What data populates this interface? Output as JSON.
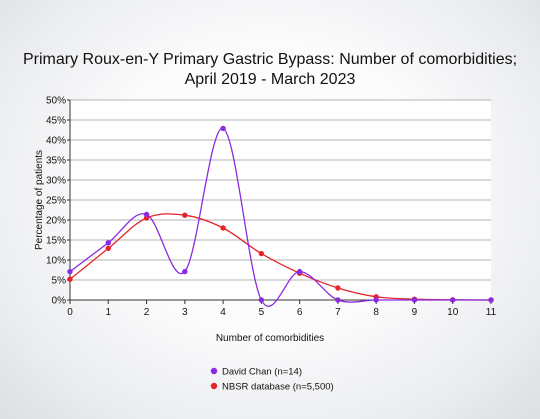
{
  "chart_data": {
    "type": "line",
    "title": "Primary Roux-en-Y Primary Gastric Bypass: Number of comorbidities;",
    "subtitle": "April 2019 - March 2023",
    "xlabel": "Number of comorbidities",
    "ylabel": "Percentage of patients",
    "x": [
      0,
      1,
      2,
      3,
      4,
      5,
      6,
      7,
      8,
      9,
      10,
      11
    ],
    "xlim": [
      0,
      11
    ],
    "ylim": [
      0,
      50
    ],
    "y_ticks": [
      "0%",
      "5%",
      "10%",
      "15%",
      "20%",
      "25%",
      "30%",
      "35%",
      "40%",
      "45%",
      "50%"
    ],
    "x_ticks": [
      "0",
      "1",
      "2",
      "3",
      "4",
      "5",
      "6",
      "7",
      "8",
      "9",
      "10",
      "11"
    ],
    "grid": true,
    "legend_position": "bottom",
    "series": [
      {
        "name": "David Chan (n=14)",
        "color": "#8a2be2",
        "values": [
          7.1,
          14.3,
          21.4,
          7.1,
          42.9,
          0,
          7.1,
          0,
          0,
          0,
          0,
          0
        ]
      },
      {
        "name": "NBSR database (n=5,500)",
        "color": "#e5252a",
        "values": [
          5.2,
          12.9,
          20.5,
          21.2,
          18.0,
          11.6,
          6.7,
          3.0,
          0.8,
          0.2,
          0.05,
          0.0
        ]
      }
    ]
  }
}
